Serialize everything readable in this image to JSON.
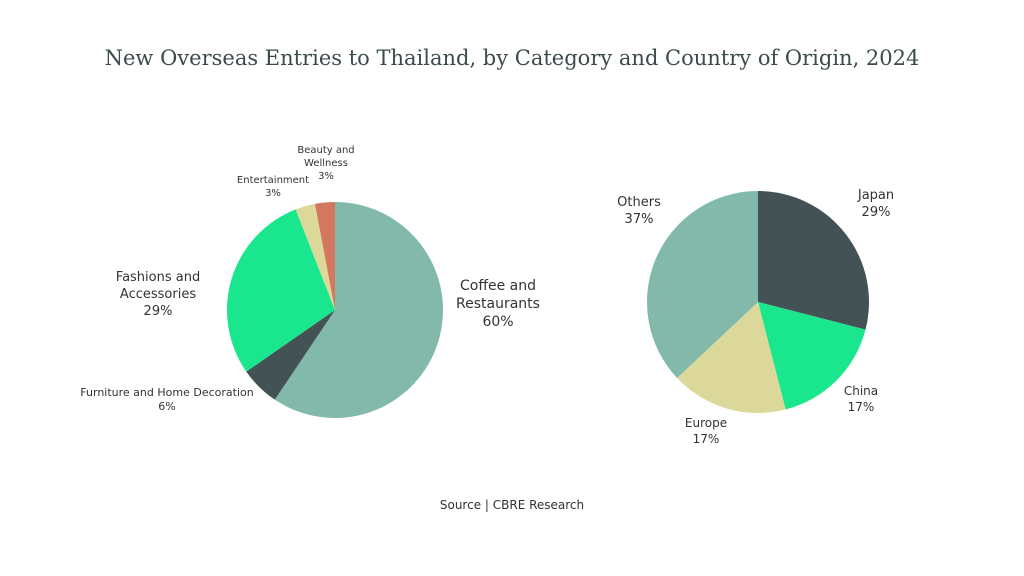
{
  "title": "New Overseas Entries to Thailand, by Category and Country of Origin, 2024",
  "source": "Source | CBRE Research",
  "chart_data": [
    {
      "type": "pie",
      "categories": [
        "Coffee and Restaurants",
        "Furniture and Home Decoration",
        "Fashions and Accessories",
        "Entertainment",
        "Beauty and Wellness"
      ],
      "values": [
        60,
        6,
        29,
        3,
        3
      ],
      "value_labels": [
        "60%",
        "6%",
        "29%",
        "3%",
        "3%"
      ],
      "colors": [
        "#82b9ab",
        "#435254",
        "#1ae68e",
        "#dbd899",
        "#d4775f"
      ]
    },
    {
      "type": "pie",
      "categories": [
        "Japan",
        "China",
        "Europe",
        "Others"
      ],
      "values": [
        29,
        17,
        17,
        37
      ],
      "value_labels": [
        "29%",
        "17%",
        "17%",
        "37%"
      ],
      "colors": [
        "#435254",
        "#1ae68e",
        "#dbd899",
        "#82b9ab"
      ]
    }
  ]
}
